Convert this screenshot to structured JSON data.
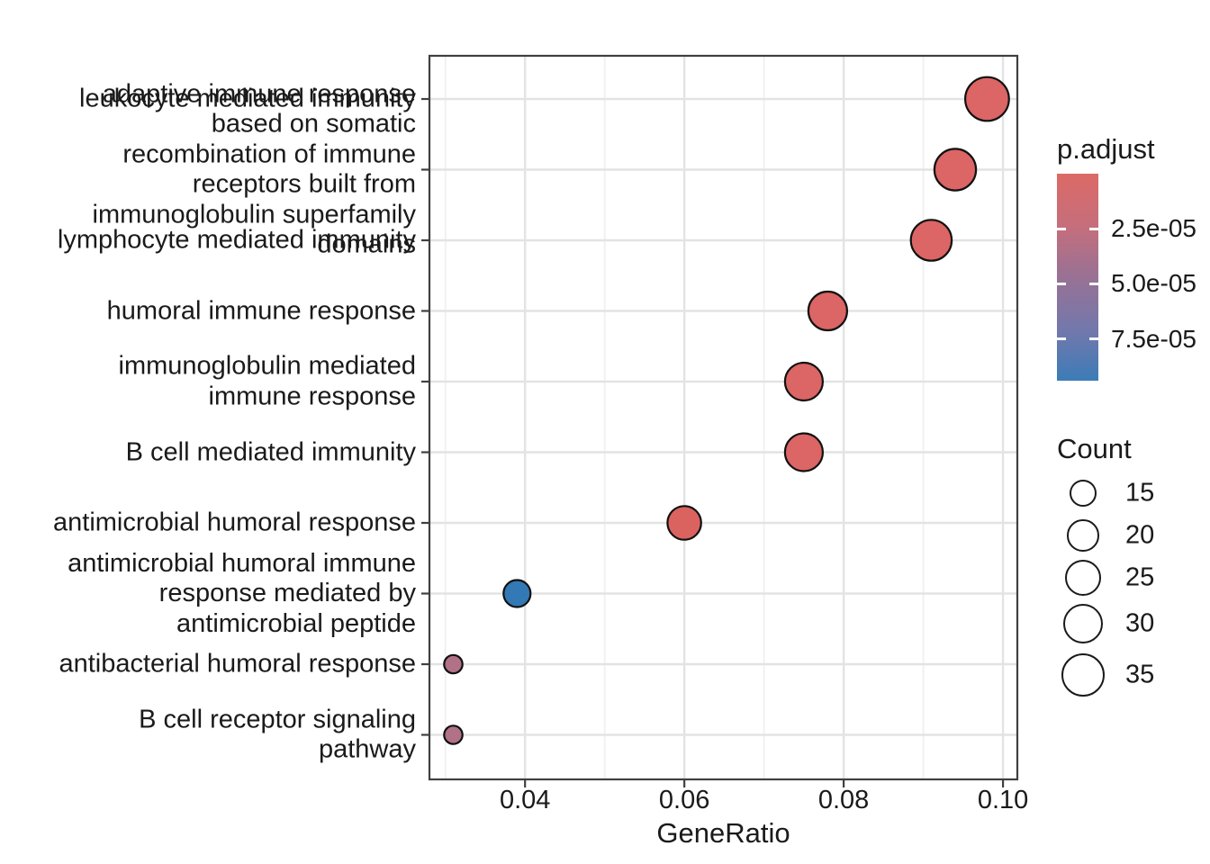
{
  "chart_data": {
    "type": "scatter",
    "subtype": "enrichment-dotplot",
    "title": "",
    "xlabel": "GeneRatio",
    "ylabel": "",
    "xlim": [
      0.028,
      0.1018
    ],
    "x_ticks": [
      {
        "value": 0.04,
        "label": "0.04"
      },
      {
        "value": 0.06,
        "label": "0.06"
      },
      {
        "value": 0.08,
        "label": "0.08"
      },
      {
        "value": 0.1,
        "label": "0.10"
      }
    ],
    "x_minor_ticks": [
      0.03,
      0.05,
      0.07,
      0.09
    ],
    "grid": true,
    "category_order": "top_to_bottom",
    "points": [
      {
        "label": "leukocyte mediated immunity",
        "lines": [
          "leukocyte mediated immunity"
        ],
        "gene_ratio": 0.098,
        "count": 35,
        "p_adjust": 1e-06,
        "color": "#DC6565"
      },
      {
        "label": "adaptive immune response based on somatic recombination of immune receptors built from immunoglobulin superfamily domains",
        "lines": [
          "adaptive immune response",
          "based on somatic",
          "recombination of immune",
          "receptors built from",
          "immunoglobulin superfamily",
          "domains"
        ],
        "gene_ratio": 0.094,
        "count": 32,
        "p_adjust": 1e-06,
        "color": "#DC6565"
      },
      {
        "label": "lymphocyte mediated immunity",
        "lines": [
          "lymphocyte mediated immunity"
        ],
        "gene_ratio": 0.091,
        "count": 31,
        "p_adjust": 1e-06,
        "color": "#DC6565"
      },
      {
        "label": "humoral immune response",
        "lines": [
          "humoral immune response"
        ],
        "gene_ratio": 0.078,
        "count": 28,
        "p_adjust": 1e-06,
        "color": "#DC6565"
      },
      {
        "label": "immunoglobulin mediated immune response",
        "lines": [
          "immunoglobulin mediated",
          "immune response"
        ],
        "gene_ratio": 0.075,
        "count": 27,
        "p_adjust": 1e-06,
        "color": "#DC6565"
      },
      {
        "label": "B cell mediated immunity",
        "lines": [
          "B cell mediated immunity"
        ],
        "gene_ratio": 0.075,
        "count": 27,
        "p_adjust": 1e-06,
        "color": "#DC6565"
      },
      {
        "label": "antimicrobial humoral response",
        "lines": [
          "antimicrobial humoral response"
        ],
        "gene_ratio": 0.06,
        "count": 22,
        "p_adjust": 2e-06,
        "color": "#DA6360"
      },
      {
        "label": "antimicrobial humoral immune response mediated by antimicrobial peptide",
        "lines": [
          "antimicrobial humoral immune",
          "response mediated by",
          "antimicrobial peptide"
        ],
        "gene_ratio": 0.039,
        "count": 15,
        "p_adjust": 9.2e-05,
        "color": "#3279B5"
      },
      {
        "label": "antibacterial humoral response",
        "lines": [
          "antibacterial humoral response"
        ],
        "gene_ratio": 0.031,
        "count": 8,
        "p_adjust": 3.5e-05,
        "color": "#B17186"
      },
      {
        "label": "B cell receptor signaling pathway",
        "lines": [
          "B cell receptor signaling",
          "pathway"
        ],
        "gene_ratio": 0.031,
        "count": 8,
        "p_adjust": 3.5e-05,
        "color": "#B17186"
      }
    ],
    "color_legend": {
      "title": "p.adjust",
      "domain": [
        0,
        9.4e-05
      ],
      "ticks": [
        {
          "value": 2.5e-05,
          "label": "2.5e-05"
        },
        {
          "value": 5e-05,
          "label": "5.0e-05"
        },
        {
          "value": 7.5e-05,
          "label": "7.5e-05"
        }
      ],
      "gradient_stops": [
        {
          "pos": 0.0,
          "color": "#DC6A66"
        },
        {
          "pos": 0.25,
          "color": "#C66E7C"
        },
        {
          "pos": 0.49,
          "color": "#9A7193"
        },
        {
          "pos": 0.75,
          "color": "#7478AC"
        },
        {
          "pos": 1.0,
          "color": "#3C7CB7"
        }
      ],
      "legend_position": "right"
    },
    "size_legend": {
      "title": "Count",
      "entries": [
        {
          "value": 15,
          "label": "15"
        },
        {
          "value": 20,
          "label": "20"
        },
        {
          "value": 25,
          "label": "25"
        },
        {
          "value": 30,
          "label": "30"
        },
        {
          "value": 35,
          "label": "35"
        }
      ],
      "legend_position": "right"
    }
  }
}
